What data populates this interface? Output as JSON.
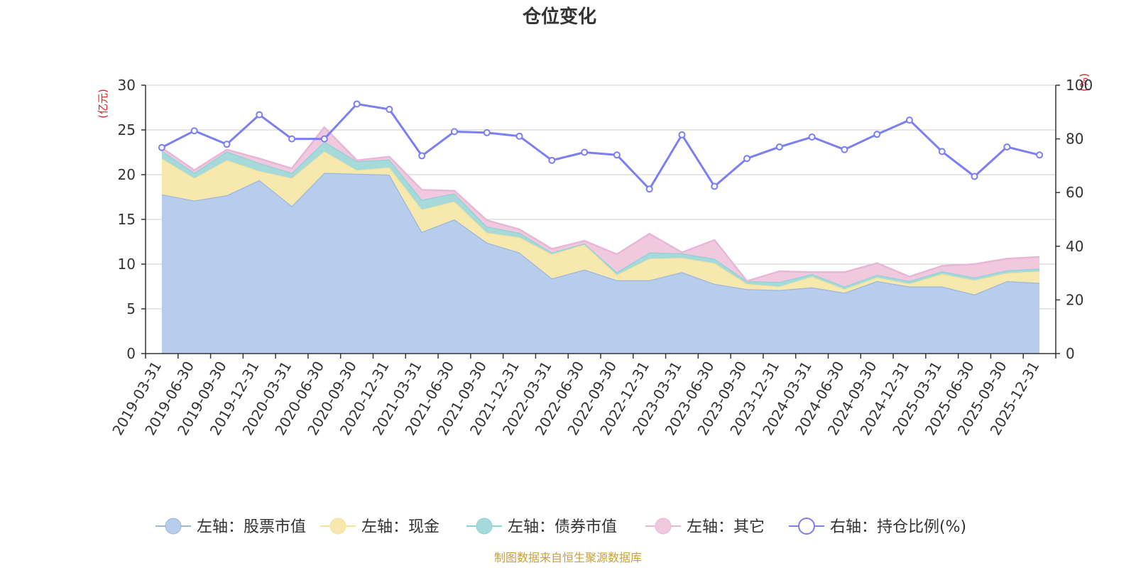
{
  "chart_data": {
    "type": "area",
    "title": "仓位变化",
    "source_note": "制图数据来自恒生聚源数据库",
    "left_axis": {
      "unit": "(亿元)",
      "min": 0,
      "max": 30,
      "ticks": [
        0,
        5,
        10,
        15,
        20,
        25,
        30
      ]
    },
    "right_axis": {
      "unit": "(%)",
      "min": 0,
      "max": 100,
      "ticks": [
        0,
        20,
        40,
        60,
        80,
        100
      ]
    },
    "categories": [
      "2019-03-31",
      "2019-06-30",
      "2019-09-30",
      "2019-12-31",
      "2020-03-31",
      "2020-06-30",
      "2020-09-30",
      "2020-12-31",
      "2021-03-31",
      "2021-06-30",
      "2021-09-30",
      "2021-12-31",
      "2022-03-31",
      "2022-06-30",
      "2022-09-30",
      "2022-12-31",
      "2023-03-31",
      "2023-06-30",
      "2023-09-30",
      "2023-12-31",
      "2024-03-31",
      "2024-06-30",
      "2024-09-30",
      "2024-12-31",
      "2025-03-31",
      "2025-06-30",
      "2025-09-30",
      "2025-12-31"
    ],
    "stacked_series": [
      {
        "name": "左轴：股票市值",
        "axis": "left",
        "color": "#9bb8e0",
        "fill": "#b8cceb",
        "values": [
          17.8,
          17.1,
          17.7,
          19.4,
          16.5,
          20.2,
          20.1,
          20.0,
          13.6,
          15.0,
          12.4,
          11.3,
          8.4,
          9.4,
          8.2,
          8.2,
          9.1,
          7.8,
          7.2,
          7.1,
          7.4,
          6.8,
          8.1,
          7.5,
          7.5,
          6.6,
          8.1,
          7.9
        ]
      },
      {
        "name": "左轴：现金",
        "axis": "left",
        "color": "#f5e29b",
        "fill": "#f7e8ad",
        "values": [
          4.0,
          2.5,
          3.9,
          1.0,
          3.1,
          2.4,
          0.4,
          0.8,
          2.5,
          2.0,
          1.1,
          1.7,
          2.7,
          2.8,
          0.6,
          2.4,
          1.6,
          2.3,
          0.6,
          0.4,
          1.2,
          0.4,
          0.4,
          0.3,
          1.4,
          1.6,
          0.9,
          1.3
        ]
      },
      {
        "name": "左轴：债券市值",
        "axis": "left",
        "color": "#8ed3d3",
        "fill": "#a6d9da",
        "values": [
          0.9,
          0.6,
          1.0,
          0.9,
          0.6,
          1.1,
          1.0,
          0.9,
          1.1,
          0.9,
          0.7,
          0.5,
          0.2,
          0.1,
          0.3,
          0.7,
          0.5,
          0.5,
          0.3,
          0.5,
          0.3,
          0.3,
          0.3,
          0.3,
          0.3,
          0.3,
          0.3,
          0.3
        ]
      },
      {
        "name": "左轴：其它",
        "axis": "left",
        "color": "#e8b7d6",
        "fill": "#f0c9df",
        "values": [
          0.3,
          0.3,
          0.2,
          0.5,
          0.5,
          1.6,
          0.1,
          0.3,
          1.1,
          0.3,
          0.7,
          0.4,
          0.4,
          0.3,
          2.0,
          2.1,
          0.1,
          2.1,
          0.0,
          1.2,
          0.2,
          1.6,
          1.3,
          0.5,
          0.6,
          1.5,
          1.3,
          1.3
        ]
      }
    ],
    "line_series": {
      "name": "右轴：持仓比例(%)",
      "axis": "right",
      "color": "#7b7fef",
      "values": [
        76.8,
        83.0,
        78.0,
        89.0,
        80.0,
        80.0,
        93.0,
        91.0,
        73.7,
        82.7,
        82.3,
        81.0,
        72.0,
        75.0,
        74.0,
        61.3,
        81.5,
        62.3,
        72.7,
        77.0,
        80.7,
        76.0,
        81.7,
        87.0,
        75.3,
        66.0,
        77.0,
        74.0
      ]
    }
  }
}
